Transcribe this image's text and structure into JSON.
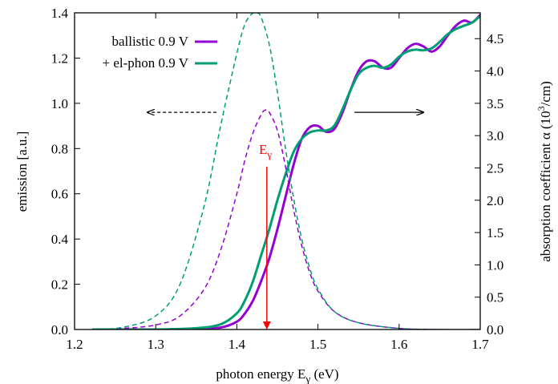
{
  "chart_data": {
    "type": "line",
    "xlabel": "photon energy E",
    "xlabel_sub": "γ",
    "xlabel_unit": " (eV)",
    "ylabel_left": "emission [a.u.]",
    "ylabel_right": "absorption coefficient α (10",
    "ylabel_right_sup": "3",
    "ylabel_right_end": "/cm)",
    "xlim": [
      1.2,
      1.7
    ],
    "ylim_left": [
      0,
      1.4
    ],
    "ylim_right": [
      0,
      4.9
    ],
    "x_ticks": [
      "1.2",
      "1.3",
      "1.4",
      "1.5",
      "1.6",
      "1.7"
    ],
    "y_left_ticks": [
      "0.0",
      "0.2",
      "0.4",
      "0.6",
      "0.8",
      "1.0",
      "1.2",
      "1.4"
    ],
    "y_right_ticks": [
      "0.0",
      "0.5",
      "1.0",
      "1.5",
      "2.0",
      "2.5",
      "3.0",
      "3.5",
      "4.0",
      "4.5"
    ],
    "legend_position": "top-left",
    "grid": false,
    "colors": {
      "ballistic": "#9400d3",
      "elphon": "#009e73",
      "marker": "#ff0000",
      "axis": "#000000"
    },
    "series": [
      {
        "name": "ballistic 0.9 V",
        "axis": "right",
        "style": "solid",
        "x": [
          1.222,
          1.3,
          1.35,
          1.38,
          1.4,
          1.41,
          1.42,
          1.43,
          1.44,
          1.45,
          1.46,
          1.47,
          1.48,
          1.49,
          1.5,
          1.51,
          1.52,
          1.53,
          1.54,
          1.55,
          1.56,
          1.57,
          1.58,
          1.59,
          1.6,
          1.61,
          1.62,
          1.63,
          1.64,
          1.65,
          1.66,
          1.67,
          1.68,
          1.69,
          1.7
        ],
        "y": [
          0.0,
          0.0,
          0.01,
          0.03,
          0.12,
          0.25,
          0.45,
          0.75,
          1.1,
          1.55,
          2.05,
          2.55,
          2.95,
          3.13,
          3.15,
          3.06,
          3.1,
          3.35,
          3.7,
          4.0,
          4.15,
          4.15,
          4.05,
          4.05,
          4.2,
          4.35,
          4.42,
          4.38,
          4.3,
          4.38,
          4.55,
          4.7,
          4.78,
          4.75,
          4.87
        ]
      },
      {
        "name": "+ el-phon 0.9 V",
        "axis": "right",
        "style": "solid",
        "x": [
          1.222,
          1.3,
          1.35,
          1.38,
          1.4,
          1.41,
          1.42,
          1.43,
          1.44,
          1.45,
          1.46,
          1.47,
          1.48,
          1.49,
          1.5,
          1.51,
          1.52,
          1.53,
          1.54,
          1.55,
          1.56,
          1.57,
          1.58,
          1.59,
          1.6,
          1.61,
          1.62,
          1.63,
          1.64,
          1.65,
          1.66,
          1.67,
          1.68,
          1.69,
          1.7
        ],
        "y": [
          0.0,
          0.0,
          0.02,
          0.08,
          0.25,
          0.45,
          0.75,
          1.15,
          1.55,
          2.0,
          2.4,
          2.75,
          2.95,
          3.05,
          3.08,
          3.08,
          3.15,
          3.4,
          3.7,
          3.95,
          4.05,
          4.08,
          4.05,
          4.1,
          4.22,
          4.3,
          4.33,
          4.32,
          4.35,
          4.45,
          4.57,
          4.65,
          4.7,
          4.75,
          4.85
        ]
      },
      {
        "name": "ballistic emission",
        "axis": "left",
        "style": "dashed",
        "x": [
          1.222,
          1.26,
          1.3,
          1.33,
          1.36,
          1.38,
          1.4,
          1.41,
          1.42,
          1.43,
          1.435,
          1.44,
          1.45,
          1.46,
          1.47,
          1.48,
          1.49,
          1.5,
          1.52,
          1.55,
          1.6,
          1.65,
          1.7
        ],
        "y": [
          0.0,
          0.005,
          0.02,
          0.06,
          0.18,
          0.35,
          0.6,
          0.75,
          0.87,
          0.95,
          0.97,
          0.96,
          0.88,
          0.72,
          0.53,
          0.37,
          0.25,
          0.17,
          0.08,
          0.03,
          0.005,
          0.0,
          0.0
        ]
      },
      {
        "name": "el-phon emission",
        "axis": "left",
        "style": "dashed",
        "x": [
          1.222,
          1.26,
          1.3,
          1.33,
          1.36,
          1.38,
          1.4,
          1.41,
          1.42,
          1.425,
          1.43,
          1.44,
          1.45,
          1.46,
          1.47,
          1.48,
          1.49,
          1.5,
          1.52,
          1.55,
          1.6,
          1.65,
          1.7
        ],
        "y": [
          0.0,
          0.01,
          0.06,
          0.2,
          0.55,
          0.9,
          1.22,
          1.35,
          1.4,
          1.4,
          1.38,
          1.26,
          1.05,
          0.8,
          0.58,
          0.4,
          0.27,
          0.18,
          0.08,
          0.03,
          0.005,
          0.0,
          0.0
        ]
      }
    ],
    "annotations": {
      "marker_label": "E",
      "marker_label_sub": "γ",
      "marker_x": 1.437,
      "marker_from": 0.72,
      "marker_to": 0.0,
      "left_arrow": {
        "from_x": 1.375,
        "to_x": 1.29,
        "y": 0.96
      },
      "right_arrow": {
        "from_x": 1.545,
        "to_x": 1.63,
        "y": 0.96
      }
    }
  }
}
